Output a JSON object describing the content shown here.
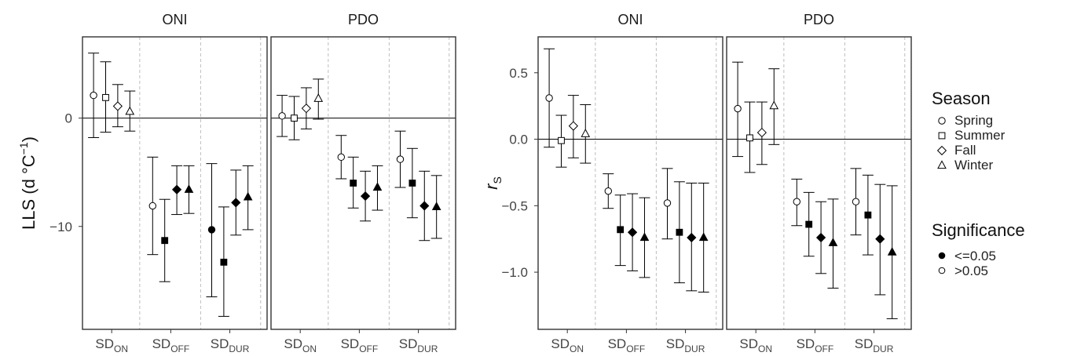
{
  "colors": {
    "significant": "#000000",
    "not_significant": "#ffffff",
    "grid": "#bdbdbd",
    "frame": "#333333"
  },
  "chart_data": [
    {
      "type": "scatter",
      "ylabel": "LLS (d °C⁻¹)",
      "ylabel_parts": {
        "main": "LLS (d °C",
        "sup": "−1",
        "close": ")"
      },
      "yticks": [
        {
          "value": 0,
          "label": "0"
        },
        {
          "value": -10,
          "label": "−10"
        }
      ],
      "ylim": [
        -19.5,
        7.5
      ],
      "panels": [
        {
          "strip": "ONI",
          "points": [
            {
              "group": "SD_ON",
              "season": "Spring",
              "y": 2.1,
              "lo": -1.8,
              "hi": 6.0,
              "sig": false
            },
            {
              "group": "SD_ON",
              "season": "Summer",
              "y": 1.9,
              "lo": -1.3,
              "hi": 5.2,
              "sig": false
            },
            {
              "group": "SD_ON",
              "season": "Fall",
              "y": 1.1,
              "lo": -0.8,
              "hi": 3.1,
              "sig": false
            },
            {
              "group": "SD_ON",
              "season": "Winter",
              "y": 0.6,
              "lo": -1.2,
              "hi": 2.5,
              "sig": false
            },
            {
              "group": "SD_OFF",
              "season": "Spring",
              "y": -8.1,
              "lo": -12.6,
              "hi": -3.6,
              "sig": false
            },
            {
              "group": "SD_OFF",
              "season": "Summer",
              "y": -11.3,
              "lo": -15.1,
              "hi": -7.5,
              "sig": true
            },
            {
              "group": "SD_OFF",
              "season": "Fall",
              "y": -6.6,
              "lo": -8.9,
              "hi": -4.4,
              "sig": true
            },
            {
              "group": "SD_OFF",
              "season": "Winter",
              "y": -6.6,
              "lo": -8.8,
              "hi": -4.4,
              "sig": true
            },
            {
              "group": "SD_DUR",
              "season": "Spring",
              "y": -10.3,
              "lo": -16.5,
              "hi": -4.2,
              "sig": true
            },
            {
              "group": "SD_DUR",
              "season": "Summer",
              "y": -13.3,
              "lo": -18.3,
              "hi": -8.2,
              "sig": true
            },
            {
              "group": "SD_DUR",
              "season": "Fall",
              "y": -7.8,
              "lo": -10.8,
              "hi": -4.8,
              "sig": true
            },
            {
              "group": "SD_DUR",
              "season": "Winter",
              "y": -7.3,
              "lo": -10.3,
              "hi": -4.4,
              "sig": true
            }
          ]
        },
        {
          "strip": "PDO",
          "points": [
            {
              "group": "SD_ON",
              "season": "Spring",
              "y": 0.2,
              "lo": -1.7,
              "hi": 2.1,
              "sig": false
            },
            {
              "group": "SD_ON",
              "season": "Summer",
              "y": 0.0,
              "lo": -2.0,
              "hi": 2.0,
              "sig": false
            },
            {
              "group": "SD_ON",
              "season": "Fall",
              "y": 0.9,
              "lo": -1.0,
              "hi": 2.8,
              "sig": false
            },
            {
              "group": "SD_ON",
              "season": "Winter",
              "y": 1.8,
              "lo": -0.1,
              "hi": 3.6,
              "sig": false
            },
            {
              "group": "SD_OFF",
              "season": "Spring",
              "y": -3.6,
              "lo": -5.6,
              "hi": -1.6,
              "sig": false
            },
            {
              "group": "SD_OFF",
              "season": "Summer",
              "y": -6.0,
              "lo": -8.3,
              "hi": -3.6,
              "sig": true
            },
            {
              "group": "SD_OFF",
              "season": "Fall",
              "y": -7.2,
              "lo": -9.5,
              "hi": -4.9,
              "sig": true
            },
            {
              "group": "SD_OFF",
              "season": "Winter",
              "y": -6.4,
              "lo": -8.5,
              "hi": -4.4,
              "sig": true
            },
            {
              "group": "SD_DUR",
              "season": "Spring",
              "y": -3.8,
              "lo": -6.4,
              "hi": -1.2,
              "sig": false
            },
            {
              "group": "SD_DUR",
              "season": "Summer",
              "y": -6.0,
              "lo": -9.2,
              "hi": -2.8,
              "sig": true
            },
            {
              "group": "SD_DUR",
              "season": "Fall",
              "y": -8.1,
              "lo": -11.3,
              "hi": -4.9,
              "sig": true
            },
            {
              "group": "SD_DUR",
              "season": "Winter",
              "y": -8.2,
              "lo": -11.1,
              "hi": -5.3,
              "sig": true
            }
          ]
        }
      ]
    },
    {
      "type": "scatter",
      "ylabel": "r_S",
      "ylabel_parts": {
        "main": "r",
        "sub": "S"
      },
      "yticks": [
        {
          "value": 0.5,
          "label": "0.5"
        },
        {
          "value": 0.0,
          "label": "0.0"
        },
        {
          "value": -0.5,
          "label": "−0.5"
        },
        {
          "value": -1.0,
          "label": "−1.0"
        }
      ],
      "ylim": [
        -1.43,
        0.77
      ],
      "panels": [
        {
          "strip": "ONI",
          "points": [
            {
              "group": "SD_ON",
              "season": "Spring",
              "y": 0.31,
              "lo": -0.06,
              "hi": 0.68,
              "sig": false
            },
            {
              "group": "SD_ON",
              "season": "Summer",
              "y": -0.01,
              "lo": -0.21,
              "hi": 0.18,
              "sig": false
            },
            {
              "group": "SD_ON",
              "season": "Fall",
              "y": 0.1,
              "lo": -0.14,
              "hi": 0.33,
              "sig": false
            },
            {
              "group": "SD_ON",
              "season": "Winter",
              "y": 0.04,
              "lo": -0.18,
              "hi": 0.26,
              "sig": false
            },
            {
              "group": "SD_OFF",
              "season": "Spring",
              "y": -0.39,
              "lo": -0.52,
              "hi": -0.26,
              "sig": false
            },
            {
              "group": "SD_OFF",
              "season": "Summer",
              "y": -0.68,
              "lo": -0.95,
              "hi": -0.42,
              "sig": true
            },
            {
              "group": "SD_OFF",
              "season": "Fall",
              "y": -0.7,
              "lo": -0.99,
              "hi": -0.41,
              "sig": true
            },
            {
              "group": "SD_OFF",
              "season": "Winter",
              "y": -0.74,
              "lo": -1.04,
              "hi": -0.44,
              "sig": true
            },
            {
              "group": "SD_DUR",
              "season": "Spring",
              "y": -0.48,
              "lo": -0.75,
              "hi": -0.22,
              "sig": false
            },
            {
              "group": "SD_DUR",
              "season": "Summer",
              "y": -0.7,
              "lo": -1.08,
              "hi": -0.32,
              "sig": true
            },
            {
              "group": "SD_DUR",
              "season": "Fall",
              "y": -0.74,
              "lo": -1.14,
              "hi": -0.33,
              "sig": true
            },
            {
              "group": "SD_DUR",
              "season": "Winter",
              "y": -0.74,
              "lo": -1.15,
              "hi": -0.33,
              "sig": true
            }
          ]
        },
        {
          "strip": "PDO",
          "points": [
            {
              "group": "SD_ON",
              "season": "Spring",
              "y": 0.23,
              "lo": -0.13,
              "hi": 0.58,
              "sig": false
            },
            {
              "group": "SD_ON",
              "season": "Summer",
              "y": 0.01,
              "lo": -0.25,
              "hi": 0.28,
              "sig": false
            },
            {
              "group": "SD_ON",
              "season": "Fall",
              "y": 0.05,
              "lo": -0.19,
              "hi": 0.28,
              "sig": false
            },
            {
              "group": "SD_ON",
              "season": "Winter",
              "y": 0.25,
              "lo": -0.04,
              "hi": 0.53,
              "sig": false
            },
            {
              "group": "SD_OFF",
              "season": "Spring",
              "y": -0.47,
              "lo": -0.65,
              "hi": -0.3,
              "sig": false
            },
            {
              "group": "SD_OFF",
              "season": "Summer",
              "y": -0.64,
              "lo": -0.88,
              "hi": -0.4,
              "sig": true
            },
            {
              "group": "SD_OFF",
              "season": "Fall",
              "y": -0.74,
              "lo": -1.01,
              "hi": -0.47,
              "sig": true
            },
            {
              "group": "SD_OFF",
              "season": "Winter",
              "y": -0.78,
              "lo": -1.12,
              "hi": -0.45,
              "sig": true
            },
            {
              "group": "SD_DUR",
              "season": "Spring",
              "y": -0.47,
              "lo": -0.72,
              "hi": -0.22,
              "sig": false
            },
            {
              "group": "SD_DUR",
              "season": "Summer",
              "y": -0.57,
              "lo": -0.87,
              "hi": -0.27,
              "sig": true
            },
            {
              "group": "SD_DUR",
              "season": "Fall",
              "y": -0.75,
              "lo": -1.17,
              "hi": -0.34,
              "sig": true
            },
            {
              "group": "SD_DUR",
              "season": "Winter",
              "y": -0.85,
              "lo": -1.35,
              "hi": -0.35,
              "sig": true
            }
          ]
        }
      ]
    }
  ],
  "x_groups": [
    {
      "key": "SD_ON",
      "base": "SD",
      "sub": "ON"
    },
    {
      "key": "SD_OFF",
      "base": "SD",
      "sub": "OFF"
    },
    {
      "key": "SD_DUR",
      "base": "SD",
      "sub": "DUR"
    }
  ],
  "seasons": [
    "Spring",
    "Summer",
    "Fall",
    "Winter"
  ],
  "season_shapes": {
    "Spring": "circle",
    "Summer": "square",
    "Fall": "diamond",
    "Winter": "triangle"
  },
  "legend": {
    "season_title": "Season",
    "season_items": [
      {
        "label": "Spring",
        "shape": "circle"
      },
      {
        "label": "Summer",
        "shape": "square"
      },
      {
        "label": "Fall",
        "shape": "diamond"
      },
      {
        "label": "Winter",
        "shape": "triangle"
      }
    ],
    "sig_title": "Significance",
    "sig_items": [
      {
        "label": "<=0.05",
        "filled": true
      },
      {
        "label": ">0.05",
        "filled": false
      }
    ]
  }
}
